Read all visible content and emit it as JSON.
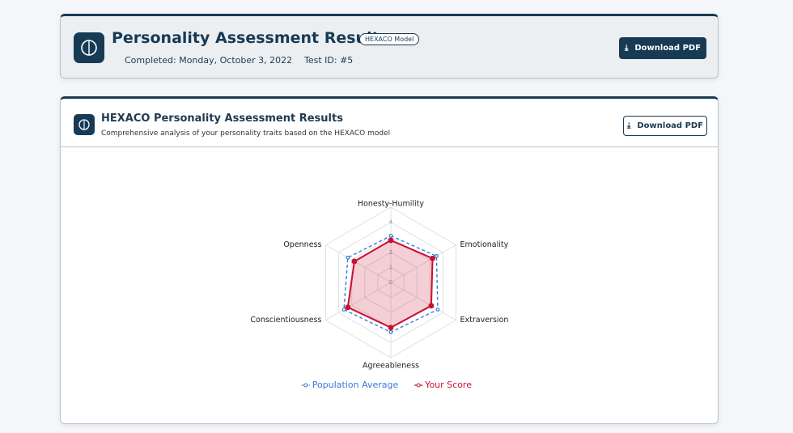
{
  "header": {
    "title": "Personality Assessment Results",
    "badge": "HEXACO Model",
    "completed": "Completed: Monday, October 3, 2022",
    "test_id": "Test ID: #5",
    "button": "Download PDF"
  },
  "card": {
    "title": "HEXACO Personality Assessment Results",
    "subtitle": "Comprehensive analysis of your personality traits based on the HEXACO model",
    "button": "Download PDF"
  },
  "chart_data": {
    "type": "radar",
    "categories": [
      "Honesty-Humility",
      "Emotionality",
      "Extraversion",
      "Agreeableness",
      "Conscientiousness",
      "Openness"
    ],
    "series": [
      {
        "name": "Population Average",
        "color": "#3b78d8",
        "line_style": "dashed",
        "values": [
          3.1,
          3.5,
          3.6,
          3.3,
          3.6,
          3.3
        ]
      },
      {
        "name": "Your Score",
        "color": "#c8102e",
        "line_style": "solid",
        "fill": true,
        "values": [
          2.8,
          3.2,
          3.1,
          3.0,
          3.3,
          2.8
        ]
      }
    ],
    "rlim": [
      0,
      5
    ],
    "rticks": [
      0,
      1,
      2,
      3,
      4
    ],
    "grid": true
  }
}
